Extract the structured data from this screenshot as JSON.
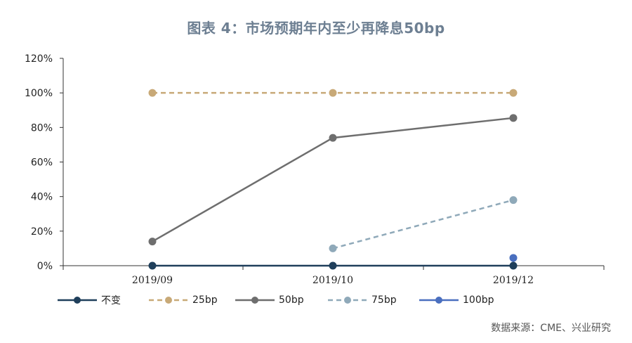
{
  "chart_data": {
    "type": "line",
    "title": "图表 4：市场预期年内至少再降息50bp",
    "categories": [
      "2019/09",
      "2019/10",
      "2019/12"
    ],
    "ylim": [
      0,
      120
    ],
    "yticks": [
      0,
      20,
      40,
      60,
      80,
      100,
      120
    ],
    "ytick_labels": [
      "0%",
      "20%",
      "40%",
      "60%",
      "80%",
      "100%",
      "120%"
    ],
    "grid": false,
    "legend_position": "bottom",
    "series": [
      {
        "name": "不变",
        "values": [
          0,
          0,
          0
        ],
        "color": "#1f3f5b",
        "dash": "solid"
      },
      {
        "name": "25bp",
        "values": [
          100,
          100,
          100
        ],
        "color": "#c8a977",
        "dash": "dashed"
      },
      {
        "name": "50bp",
        "values": [
          14,
          74,
          85.5
        ],
        "color": "#6e6e6e",
        "dash": "solid"
      },
      {
        "name": "75bp",
        "values": [
          null,
          10,
          38
        ],
        "color": "#8fa9b9",
        "dash": "dashed"
      },
      {
        "name": "100bp",
        "values": [
          null,
          null,
          4.5
        ],
        "color": "#4a6fbf",
        "dash": "solid"
      }
    ]
  },
  "source": "数据来源：CME、兴业研究"
}
